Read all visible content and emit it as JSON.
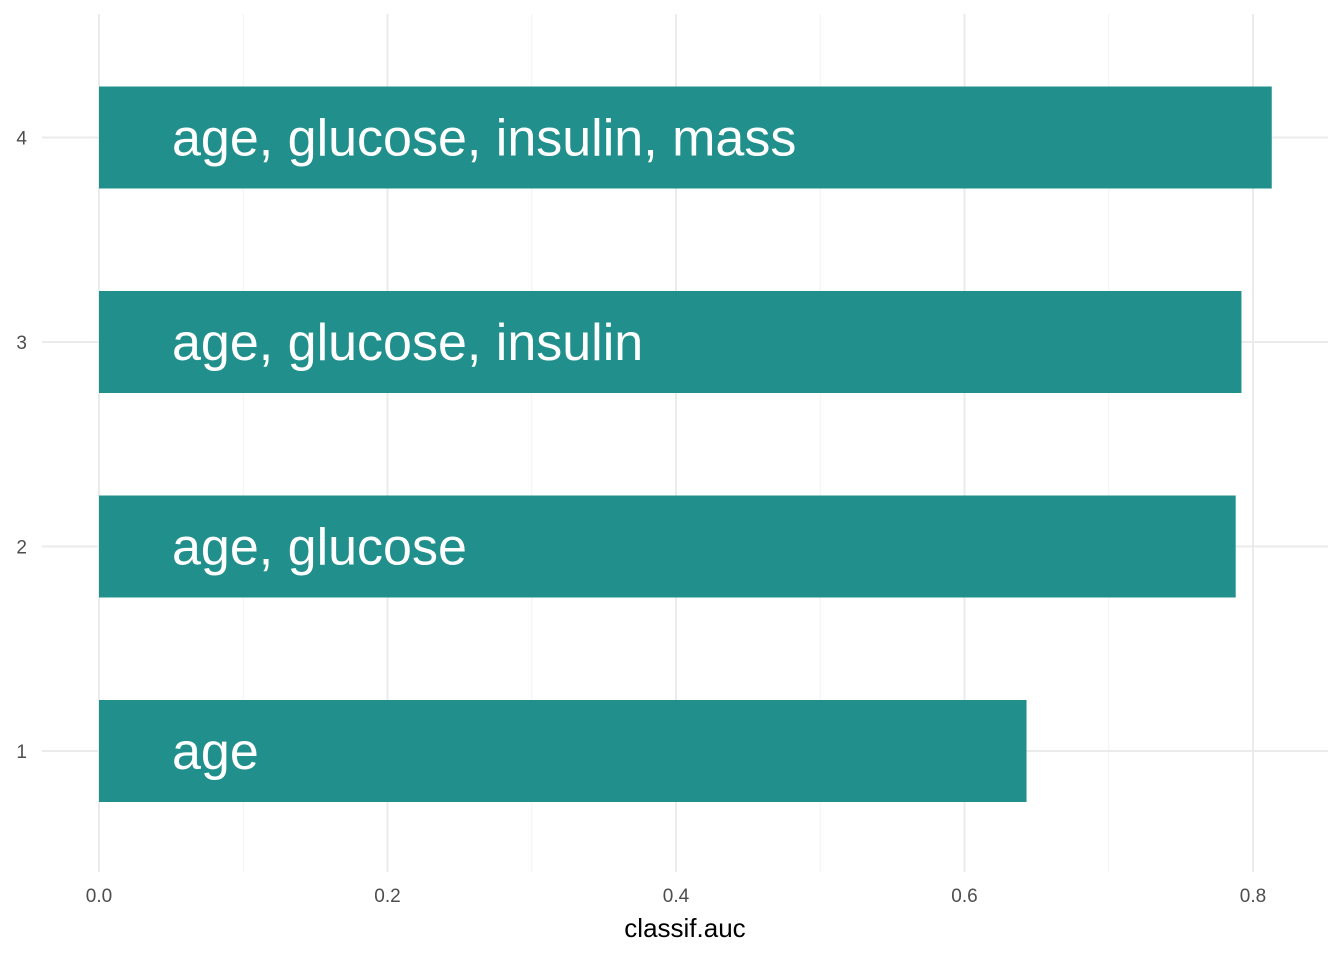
{
  "chart_data": {
    "type": "bar",
    "orientation": "horizontal",
    "categories": [
      "1",
      "2",
      "3",
      "4"
    ],
    "values": [
      0.643,
      0.788,
      0.792,
      0.813
    ],
    "bar_labels": [
      "age",
      "age, glucose",
      "age, glucose, insulin",
      "age, glucose, insulin, mass"
    ],
    "title": "",
    "xlabel": "classif.auc",
    "ylabel": "",
    "xlim": [
      0,
      0.8
    ],
    "x_ticks": [
      "0.0",
      "0.2",
      "0.4",
      "0.6",
      "0.8"
    ],
    "x_tick_values": [
      0,
      0.2,
      0.4,
      0.6,
      0.8
    ],
    "grid": true,
    "legend": "none",
    "bar_color": "#21908C"
  }
}
